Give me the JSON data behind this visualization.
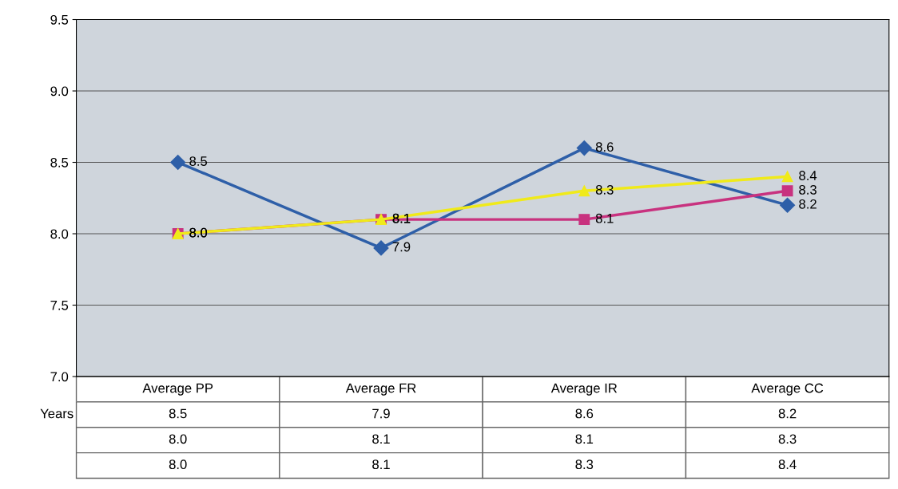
{
  "chart_data": {
    "type": "line",
    "categories": [
      "Average PP",
      "Average FR",
      "Average IR",
      "Average CC"
    ],
    "series": [
      {
        "name": "Years",
        "color": "#2e5fa8",
        "marker": "diamond",
        "values": [
          8.5,
          7.9,
          8.6,
          8.2
        ],
        "value_labels": [
          "8.5",
          "7.9",
          "8.6",
          "8.2"
        ]
      },
      {
        "color": "#c8327f",
        "marker": "square",
        "values": [
          8.0,
          8.1,
          8.1,
          8.3
        ],
        "value_labels": [
          "8.0",
          "8.1",
          "8.1",
          "8.3"
        ]
      },
      {
        "color": "#f0ea1a",
        "marker": "triangle",
        "values": [
          8.0,
          8.1,
          8.3,
          8.4
        ],
        "value_labels": [
          "8.0",
          "8.1",
          "8.3",
          "8.4"
        ]
      }
    ],
    "ylim": [
      7.0,
      9.5
    ],
    "yticks": [
      {
        "value": 7.0,
        "label": "7.0"
      },
      {
        "value": 7.5,
        "label": "7.5"
      },
      {
        "value": 8.0,
        "label": "8.0"
      },
      {
        "value": 8.5,
        "label": "8.5"
      },
      {
        "value": 9.0,
        "label": "9.0"
      },
      {
        "value": 9.5,
        "label": "9.5"
      }
    ],
    "grid": "y",
    "line_style": "solid",
    "legend": false
  }
}
